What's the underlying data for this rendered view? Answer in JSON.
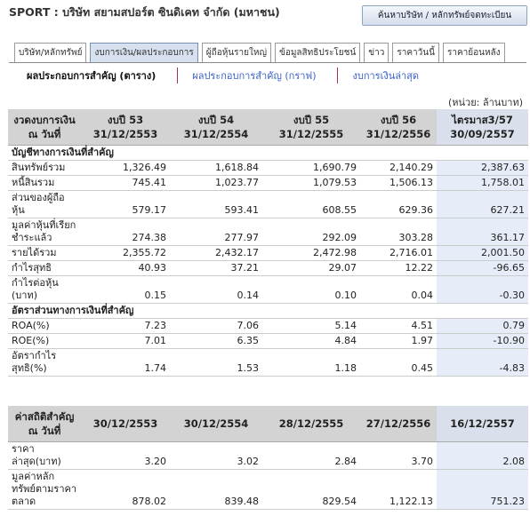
{
  "header": {
    "title": "SPORT : บริษัท สยามสปอร์ต ซินดิเคท จำกัด (มหาชน)",
    "search_button": "ค้นหาบริษัท / หลักทรัพย์จดทะเบียน"
  },
  "tabs": [
    "บริษัท/หลักทรัพย์",
    "งบการเงิน/ผลประกอบการ",
    "ผู้ถือหุ้นรายใหญ่",
    "ข้อมูลสิทธิประโยชน์",
    "ข่าว",
    "ราคาวันนี้",
    "ราคาย้อนหลัง"
  ],
  "sub_links": [
    "ผลประกอบการสำคัญ (ตาราง)",
    "ผลประกอบการสำคัญ (กราฟ)",
    "งบการเงินล่าสุด"
  ],
  "unit_note": "(หน่วย: ล้านบาท)",
  "financial_table": {
    "header": {
      "label": "งวดงบการเงิน ณ วันที่",
      "columns": [
        {
          "period": "งบปี 53",
          "date": "31/12/2553"
        },
        {
          "period": "งบปี 54",
          "date": "31/12/2554"
        },
        {
          "period": "งบปี 55",
          "date": "31/12/2555"
        },
        {
          "period": "งบปี 56",
          "date": "31/12/2556"
        },
        {
          "period": "ไตรมาส3/57",
          "date": "30/09/2557"
        }
      ]
    },
    "sections": [
      {
        "title": "บัญชีทางการเงินที่สำคัญ",
        "rows": [
          {
            "label": "สินทรัพย์รวม",
            "values": [
              "1,326.49",
              "1,618.84",
              "1,690.79",
              "2,140.29",
              "2,387.63"
            ]
          },
          {
            "label": "หนี้สินรวม",
            "values": [
              "745.41",
              "1,023.77",
              "1,079.53",
              "1,506.13",
              "1,758.01"
            ]
          },
          {
            "label": "ส่วนของผู้ถือหุ้น",
            "values": [
              "579.17",
              "593.41",
              "608.55",
              "629.36",
              "627.21"
            ]
          },
          {
            "label": "มูลค่าหุ้นที่เรียกชำระแล้ว",
            "values": [
              "274.38",
              "277.97",
              "292.09",
              "303.28",
              "361.17"
            ]
          },
          {
            "label": "รายได้รวม",
            "values": [
              "2,355.72",
              "2,432.17",
              "2,472.98",
              "2,716.01",
              "2,001.50"
            ]
          },
          {
            "label": "กำไรสุทธิ",
            "values": [
              "40.93",
              "37.21",
              "29.07",
              "12.22",
              "-96.65"
            ]
          },
          {
            "label": "กำไรต่อหุ้น (บาท)",
            "values": [
              "0.15",
              "0.14",
              "0.10",
              "0.04",
              "-0.30"
            ]
          }
        ]
      },
      {
        "title": "อัตราส่วนทางการเงินที่สำคัญ",
        "rows": [
          {
            "label": "ROA(%)",
            "values": [
              "7.23",
              "7.06",
              "5.14",
              "4.51",
              "0.79"
            ]
          },
          {
            "label": "ROE(%)",
            "values": [
              "7.01",
              "6.35",
              "4.84",
              "1.97",
              "-10.90"
            ]
          },
          {
            "label": "อัตรากำไรสุทธิ(%)",
            "values": [
              "1.74",
              "1.53",
              "1.18",
              "0.45",
              "-4.83"
            ]
          }
        ]
      }
    ]
  },
  "statistics_table": {
    "header": {
      "label": "ค่าสถิติสำคัญ ณ วันที่",
      "dates": [
        "30/12/2553",
        "30/12/2554",
        "28/12/2555",
        "27/12/2556",
        "16/12/2557"
      ]
    },
    "rows": [
      {
        "label": "ราคาล่าสุด(บาท)",
        "values": [
          "3.20",
          "3.02",
          "2.84",
          "3.70",
          "2.08"
        ]
      },
      {
        "label": "มูลค่าหลักทรัพย์ตามราคาตลาด",
        "values": [
          "878.02",
          "839.48",
          "829.54",
          "1,122.13",
          "751.23"
        ]
      }
    ]
  }
}
